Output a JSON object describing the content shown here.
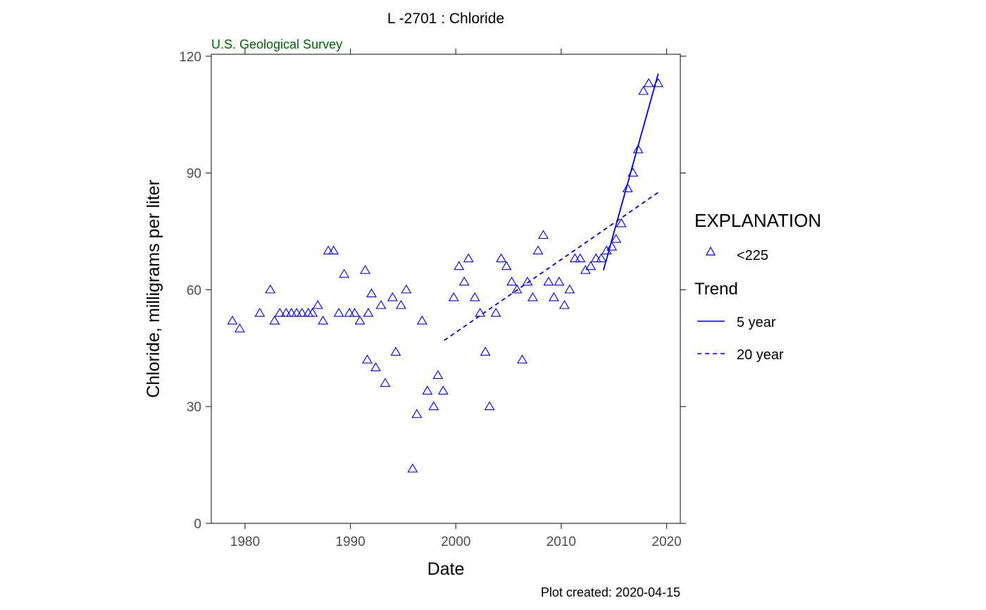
{
  "chart_data": {
    "type": "scatter",
    "title": "L  -2701 : Chloride",
    "subtitle": "U.S. Geological Survey",
    "xlabel": "Date",
    "ylabel": "Chloride, milligrams per liter",
    "caption": "Plot created: 2020-04-15",
    "xlim": [
      1976.8,
      2021.3
    ],
    "ylim": [
      0,
      120.5
    ],
    "x_ticks": [
      1980,
      1990,
      2000,
      2010,
      2020
    ],
    "y_ticks": [
      0,
      30,
      60,
      90,
      120
    ],
    "grid": false,
    "legend_position": "right",
    "legend": {
      "title": "EXPLANATION",
      "trend_title": "Trend",
      "items": [
        {
          "label": "<225",
          "kind": "marker"
        },
        {
          "label": "5 year",
          "kind": "solid"
        },
        {
          "label": "20 year",
          "kind": "dashed"
        }
      ]
    },
    "series": [
      {
        "name": "<225",
        "kind": "points",
        "color": "#0000cc",
        "points": [
          [
            1978.8,
            52
          ],
          [
            1979.5,
            50
          ],
          [
            1981.4,
            54
          ],
          [
            1982.4,
            60
          ],
          [
            1982.8,
            52
          ],
          [
            1983.3,
            54
          ],
          [
            1983.9,
            54
          ],
          [
            1984.4,
            54
          ],
          [
            1984.9,
            54
          ],
          [
            1985.4,
            54
          ],
          [
            1986.0,
            54
          ],
          [
            1986.4,
            54
          ],
          [
            1986.9,
            56
          ],
          [
            1987.4,
            52
          ],
          [
            1987.9,
            70
          ],
          [
            1988.4,
            70
          ],
          [
            1988.9,
            54
          ],
          [
            1989.4,
            64
          ],
          [
            1989.9,
            54
          ],
          [
            1990.4,
            54
          ],
          [
            1990.9,
            52
          ],
          [
            1991.4,
            65
          ],
          [
            1991.6,
            42
          ],
          [
            1991.7,
            54
          ],
          [
            1992.0,
            59
          ],
          [
            1992.4,
            40
          ],
          [
            1992.9,
            56
          ],
          [
            1993.3,
            36
          ],
          [
            1994.0,
            58
          ],
          [
            1994.3,
            44
          ],
          [
            1994.8,
            56
          ],
          [
            1995.3,
            60
          ],
          [
            1995.9,
            14
          ],
          [
            1996.3,
            28
          ],
          [
            1996.8,
            52
          ],
          [
            1997.3,
            34
          ],
          [
            1997.9,
            30
          ],
          [
            1998.3,
            38
          ],
          [
            1998.8,
            34
          ],
          [
            1999.8,
            58
          ],
          [
            2000.3,
            66
          ],
          [
            2000.8,
            62
          ],
          [
            2001.2,
            68
          ],
          [
            2001.8,
            58
          ],
          [
            2002.3,
            54
          ],
          [
            2002.8,
            44
          ],
          [
            2003.2,
            30
          ],
          [
            2003.8,
            54
          ],
          [
            2004.3,
            68
          ],
          [
            2004.8,
            66
          ],
          [
            2005.3,
            62
          ],
          [
            2005.8,
            60
          ],
          [
            2006.3,
            42
          ],
          [
            2006.8,
            62
          ],
          [
            2007.3,
            58
          ],
          [
            2007.8,
            70
          ],
          [
            2008.3,
            74
          ],
          [
            2008.8,
            62
          ],
          [
            2009.3,
            58
          ],
          [
            2009.8,
            62
          ],
          [
            2010.3,
            56
          ],
          [
            2010.8,
            60
          ],
          [
            2011.3,
            68
          ],
          [
            2011.8,
            68
          ],
          [
            2012.3,
            65
          ],
          [
            2012.8,
            66
          ],
          [
            2013.3,
            68
          ],
          [
            2013.8,
            68
          ],
          [
            2014.3,
            70
          ],
          [
            2014.8,
            71
          ],
          [
            2015.2,
            73
          ],
          [
            2015.7,
            77
          ],
          [
            2016.3,
            86
          ],
          [
            2016.8,
            90
          ],
          [
            2017.3,
            96
          ],
          [
            2017.8,
            111
          ],
          [
            2018.3,
            113
          ],
          [
            2019.2,
            113
          ]
        ]
      },
      {
        "name": "5 year",
        "kind": "line",
        "dash": "solid",
        "color": "#0000cc",
        "points": [
          [
            2014.0,
            65
          ],
          [
            2019.2,
            115.5
          ]
        ]
      },
      {
        "name": "20 year",
        "kind": "line",
        "dash": "dashed",
        "color": "#0000cc",
        "points": [
          [
            1998.9,
            47
          ],
          [
            2019.2,
            85
          ]
        ]
      }
    ]
  }
}
